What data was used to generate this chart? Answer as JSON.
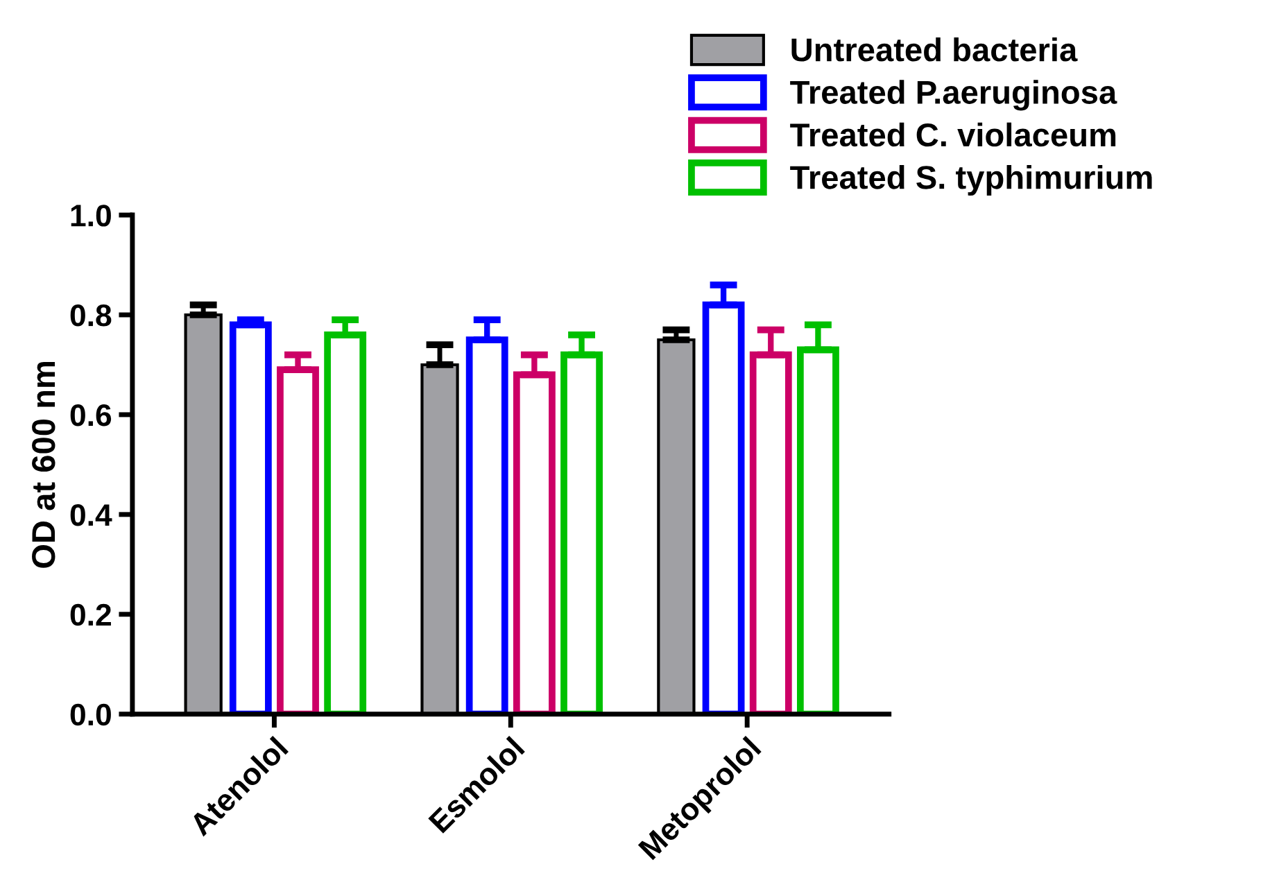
{
  "chart_data": {
    "type": "bar",
    "ylabel": "OD at 600 nm",
    "categories": [
      "Atenolol",
      "Esmolol",
      "Metoprolol"
    ],
    "series": [
      {
        "name": "Untreated bacteria",
        "color": "#a0a0a4",
        "values": [
          0.8,
          0.7,
          0.75
        ],
        "errors": [
          [
            0.8,
            0.82
          ],
          [
            0.7,
            0.74
          ],
          [
            0.75,
            0.77
          ]
        ]
      },
      {
        "name": "Treated P.aeruginosa",
        "color": "#0000ff",
        "values": [
          0.78,
          0.75,
          0.82
        ],
        "errors": [
          [
            0.78,
            0.79
          ],
          [
            0.75,
            0.79
          ],
          [
            0.82,
            0.86
          ]
        ]
      },
      {
        "name": "Treated C. violaceum",
        "color": "#cc0066",
        "values": [
          0.69,
          0.68,
          0.72
        ],
        "errors": [
          [
            0.69,
            0.72
          ],
          [
            0.68,
            0.72
          ],
          [
            0.72,
            0.77
          ]
        ]
      },
      {
        "name": "Treated S. typhimurium",
        "color": "#00c000",
        "values": [
          0.76,
          0.72,
          0.73
        ],
        "errors": [
          [
            0.76,
            0.79
          ],
          [
            0.72,
            0.76
          ],
          [
            0.73,
            0.78
          ]
        ]
      }
    ],
    "ylim": [
      0,
      1.0
    ],
    "yticks": [
      {
        "value": 0,
        "label": "0.0"
      },
      0.2,
      0.4,
      0.6,
      0.8,
      {
        "value": 1,
        "label": "1.0"
      }
    ],
    "grid": false,
    "legend": "top right"
  }
}
